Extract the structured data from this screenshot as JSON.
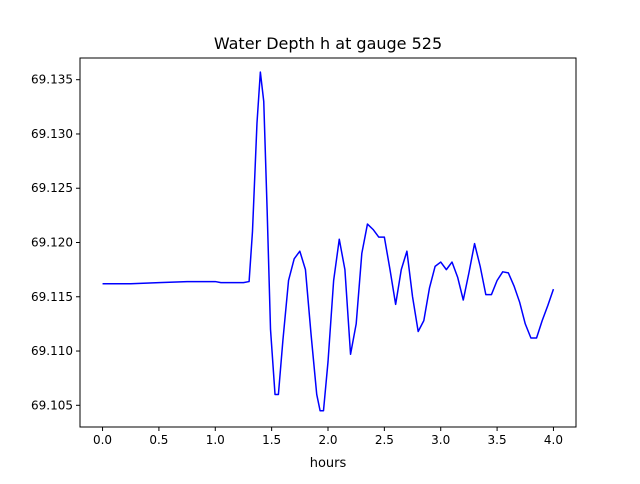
{
  "chart_data": {
    "type": "line",
    "title": "Water Depth h at gauge 525",
    "xlabel": "hours",
    "ylabel": "",
    "xlim": [
      -0.2,
      4.2
    ],
    "ylim": [
      69.103,
      69.137
    ],
    "xticks": [
      0.0,
      0.5,
      1.0,
      1.5,
      2.0,
      2.5,
      3.0,
      3.5,
      4.0
    ],
    "xtick_labels": [
      "0.0",
      "0.5",
      "1.0",
      "1.5",
      "2.0",
      "2.5",
      "3.0",
      "3.5",
      "4.0"
    ],
    "yticks": [
      69.105,
      69.11,
      69.115,
      69.12,
      69.125,
      69.13,
      69.135
    ],
    "ytick_labels": [
      "69.105",
      "69.110",
      "69.115",
      "69.120",
      "69.125",
      "69.130",
      "69.135"
    ],
    "grid": false,
    "series": [
      {
        "color": "#0000ff",
        "x": [
          0.0,
          0.25,
          0.5,
          0.75,
          1.0,
          1.05,
          1.15,
          1.25,
          1.3,
          1.33,
          1.37,
          1.4,
          1.43,
          1.46,
          1.49,
          1.53,
          1.56,
          1.6,
          1.65,
          1.7,
          1.75,
          1.8,
          1.85,
          1.9,
          1.93,
          1.96,
          2.0,
          2.05,
          2.1,
          2.15,
          2.2,
          2.25,
          2.3,
          2.35,
          2.4,
          2.45,
          2.5,
          2.55,
          2.6,
          2.65,
          2.7,
          2.75,
          2.8,
          2.85,
          2.9,
          2.95,
          3.0,
          3.05,
          3.1,
          3.15,
          3.2,
          3.25,
          3.3,
          3.35,
          3.4,
          3.45,
          3.5,
          3.55,
          3.6,
          3.65,
          3.7,
          3.75,
          3.8,
          3.85,
          3.9,
          3.95,
          4.0
        ],
        "y": [
          69.1162,
          69.1162,
          69.1163,
          69.1164,
          69.1164,
          69.1163,
          69.1163,
          69.1163,
          69.1164,
          69.121,
          69.131,
          69.1357,
          69.133,
          69.123,
          69.112,
          69.106,
          69.106,
          69.111,
          69.1165,
          69.1185,
          69.1192,
          69.1175,
          69.1115,
          69.106,
          69.1045,
          69.1045,
          69.109,
          69.1165,
          69.1203,
          69.1175,
          69.1097,
          69.1125,
          69.119,
          69.1217,
          69.1212,
          69.1205,
          69.1205,
          69.1175,
          69.1143,
          69.1175,
          69.1192,
          69.115,
          69.1118,
          69.1128,
          69.1158,
          69.1178,
          69.1182,
          69.1175,
          69.1182,
          69.1168,
          69.1147,
          69.1172,
          69.1199,
          69.1178,
          69.1152,
          69.1152,
          69.1165,
          69.1173,
          69.1172,
          69.116,
          69.1145,
          69.1125,
          69.1112,
          69.1112,
          69.1128,
          69.1142,
          69.1157
        ]
      }
    ]
  }
}
